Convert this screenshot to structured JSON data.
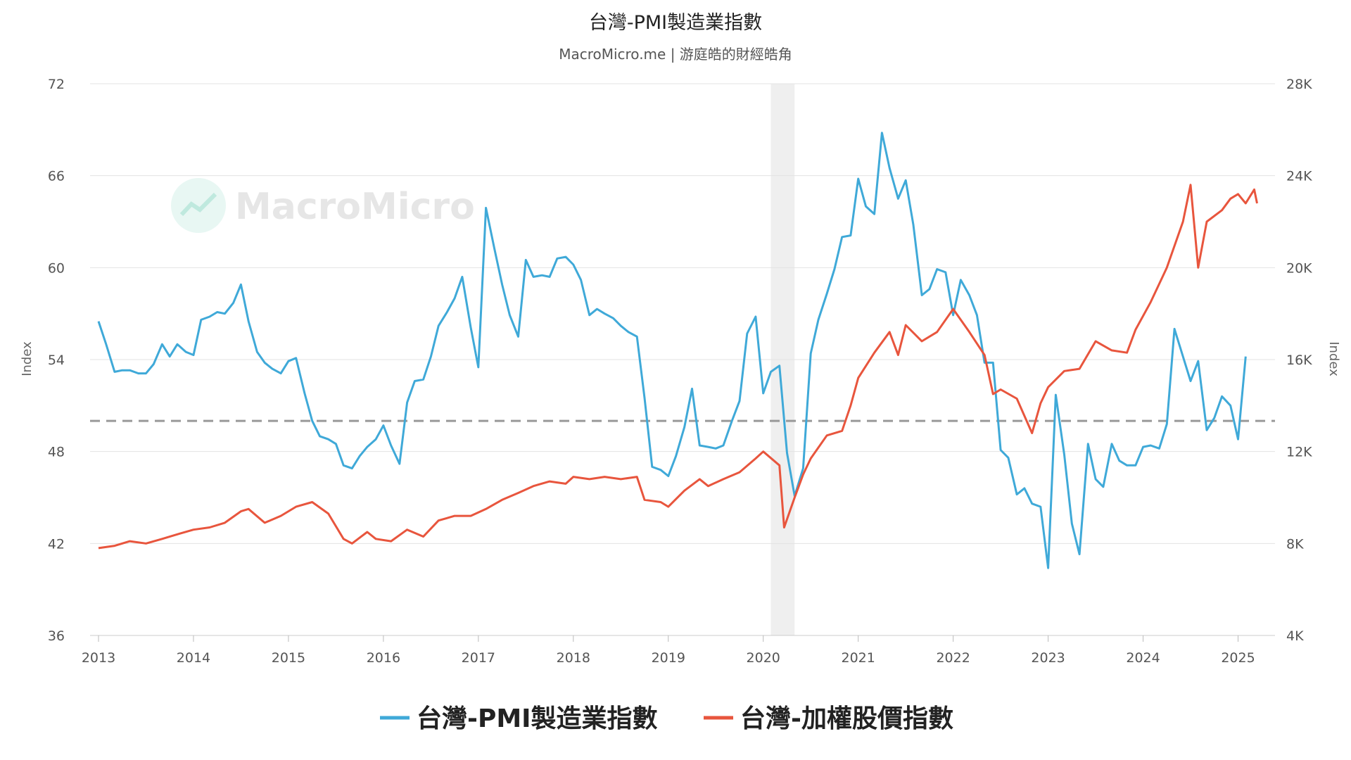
{
  "chart_data": {
    "type": "line",
    "title": "台灣-PMI製造業指數",
    "subtitle": "MacroMicro.me | 游庭皓的財經皓角",
    "watermark": "MacroMicro",
    "left_axis": {
      "label": "Index",
      "min": 36,
      "max": 72,
      "ticks": [
        36,
        42,
        48,
        54,
        60,
        66,
        72
      ]
    },
    "right_axis": {
      "label": "Index",
      "min": 4000,
      "max": 28000,
      "ticks": [
        4000,
        8000,
        12000,
        16000,
        20000,
        24000,
        28000
      ],
      "tick_labels": [
        "4K",
        "8K",
        "12K",
        "16K",
        "20K",
        "24K",
        "28K"
      ]
    },
    "x_axis": {
      "min": 2013.0,
      "max": 2025.3,
      "ticks": [
        2013,
        2014,
        2015,
        2016,
        2017,
        2018,
        2019,
        2020,
        2021,
        2022,
        2023,
        2024,
        2025
      ]
    },
    "reference_line": {
      "axis": "left",
      "value": 50
    },
    "shaded_region": {
      "from": 2020.08,
      "to": 2020.33
    },
    "grid": true,
    "legend_position": "bottom",
    "series": [
      {
        "name": "台灣-PMI製造業指數",
        "axis": "left",
        "color": "#3fa9d8",
        "points": [
          [
            2013.0,
            56.5
          ],
          [
            2013.08,
            55.0
          ],
          [
            2013.17,
            53.2
          ],
          [
            2013.25,
            53.3
          ],
          [
            2013.33,
            53.3
          ],
          [
            2013.42,
            53.1
          ],
          [
            2013.5,
            53.1
          ],
          [
            2013.58,
            53.7
          ],
          [
            2013.67,
            55.0
          ],
          [
            2013.75,
            54.2
          ],
          [
            2013.83,
            55.0
          ],
          [
            2013.92,
            54.5
          ],
          [
            2014.0,
            54.3
          ],
          [
            2014.08,
            56.6
          ],
          [
            2014.17,
            56.8
          ],
          [
            2014.25,
            57.1
          ],
          [
            2014.33,
            57.0
          ],
          [
            2014.42,
            57.7
          ],
          [
            2014.5,
            58.9
          ],
          [
            2014.58,
            56.5
          ],
          [
            2014.67,
            54.5
          ],
          [
            2014.75,
            53.8
          ],
          [
            2014.83,
            53.4
          ],
          [
            2014.92,
            53.1
          ],
          [
            2015.0,
            53.9
          ],
          [
            2015.08,
            54.1
          ],
          [
            2015.17,
            51.8
          ],
          [
            2015.25,
            50.0
          ],
          [
            2015.33,
            49.0
          ],
          [
            2015.42,
            48.8
          ],
          [
            2015.5,
            48.5
          ],
          [
            2015.58,
            47.1
          ],
          [
            2015.67,
            46.9
          ],
          [
            2015.75,
            47.7
          ],
          [
            2015.83,
            48.3
          ],
          [
            2015.92,
            48.8
          ],
          [
            2016.0,
            49.7
          ],
          [
            2016.08,
            48.4
          ],
          [
            2016.17,
            47.2
          ],
          [
            2016.25,
            51.2
          ],
          [
            2016.33,
            52.6
          ],
          [
            2016.42,
            52.7
          ],
          [
            2016.5,
            54.2
          ],
          [
            2016.58,
            56.2
          ],
          [
            2016.67,
            57.1
          ],
          [
            2016.75,
            58.0
          ],
          [
            2016.83,
            59.4
          ],
          [
            2016.92,
            56.1
          ],
          [
            2017.0,
            53.5
          ],
          [
            2017.08,
            63.9
          ],
          [
            2017.17,
            61.2
          ],
          [
            2017.25,
            58.9
          ],
          [
            2017.33,
            56.9
          ],
          [
            2017.42,
            55.5
          ],
          [
            2017.5,
            60.5
          ],
          [
            2017.58,
            59.4
          ],
          [
            2017.67,
            59.5
          ],
          [
            2017.75,
            59.4
          ],
          [
            2017.83,
            60.6
          ],
          [
            2017.92,
            60.7
          ],
          [
            2018.0,
            60.2
          ],
          [
            2018.08,
            59.2
          ],
          [
            2018.17,
            56.9
          ],
          [
            2018.25,
            57.3
          ],
          [
            2018.33,
            57.0
          ],
          [
            2018.42,
            56.7
          ],
          [
            2018.5,
            56.2
          ],
          [
            2018.58,
            55.8
          ],
          [
            2018.67,
            55.5
          ],
          [
            2018.75,
            51.5
          ],
          [
            2018.83,
            47.0
          ],
          [
            2018.92,
            46.8
          ],
          [
            2019.0,
            46.4
          ],
          [
            2019.08,
            47.7
          ],
          [
            2019.17,
            49.6
          ],
          [
            2019.25,
            52.1
          ],
          [
            2019.33,
            48.4
          ],
          [
            2019.42,
            48.3
          ],
          [
            2019.5,
            48.2
          ],
          [
            2019.58,
            48.4
          ],
          [
            2019.67,
            50.0
          ],
          [
            2019.75,
            51.3
          ],
          [
            2019.83,
            55.7
          ],
          [
            2019.92,
            56.8
          ],
          [
            2020.0,
            51.8
          ],
          [
            2020.08,
            53.2
          ],
          [
            2020.17,
            53.6
          ],
          [
            2020.25,
            47.9
          ],
          [
            2020.33,
            45.1
          ],
          [
            2020.42,
            46.9
          ],
          [
            2020.5,
            54.4
          ],
          [
            2020.58,
            56.6
          ],
          [
            2020.67,
            58.3
          ],
          [
            2020.75,
            59.9
          ],
          [
            2020.83,
            62.0
          ],
          [
            2020.92,
            62.1
          ],
          [
            2021.0,
            65.8
          ],
          [
            2021.08,
            64.0
          ],
          [
            2021.17,
            63.5
          ],
          [
            2021.25,
            68.8
          ],
          [
            2021.33,
            66.5
          ],
          [
            2021.42,
            64.5
          ],
          [
            2021.5,
            65.7
          ],
          [
            2021.58,
            62.8
          ],
          [
            2021.67,
            58.2
          ],
          [
            2021.75,
            58.6
          ],
          [
            2021.83,
            59.9
          ],
          [
            2021.92,
            59.7
          ],
          [
            2022.0,
            56.9
          ],
          [
            2022.08,
            59.2
          ],
          [
            2022.17,
            58.2
          ],
          [
            2022.25,
            56.9
          ],
          [
            2022.33,
            53.8
          ],
          [
            2022.42,
            53.8
          ],
          [
            2022.5,
            48.1
          ],
          [
            2022.58,
            47.6
          ],
          [
            2022.67,
            45.2
          ],
          [
            2022.75,
            45.6
          ],
          [
            2022.83,
            44.6
          ],
          [
            2022.92,
            44.4
          ],
          [
            2023.0,
            40.4
          ],
          [
            2023.08,
            51.7
          ],
          [
            2023.17,
            47.8
          ],
          [
            2023.25,
            43.3
          ],
          [
            2023.33,
            41.3
          ],
          [
            2023.42,
            48.5
          ],
          [
            2023.5,
            46.2
          ],
          [
            2023.58,
            45.7
          ],
          [
            2023.67,
            48.5
          ],
          [
            2023.75,
            47.4
          ],
          [
            2023.83,
            47.1
          ],
          [
            2023.92,
            47.1
          ],
          [
            2024.0,
            48.3
          ],
          [
            2024.08,
            48.4
          ],
          [
            2024.17,
            48.2
          ],
          [
            2024.25,
            49.8
          ],
          [
            2024.33,
            56.0
          ],
          [
            2024.42,
            54.2
          ],
          [
            2024.5,
            52.6
          ],
          [
            2024.58,
            53.9
          ],
          [
            2024.67,
            49.4
          ],
          [
            2024.75,
            50.2
          ],
          [
            2024.83,
            51.6
          ],
          [
            2024.92,
            51.0
          ],
          [
            2025.0,
            48.8
          ],
          [
            2025.08,
            54.2
          ]
        ]
      },
      {
        "name": "台灣-加權股價指數",
        "axis": "right",
        "color": "#e8553d",
        "points": [
          [
            2013.0,
            7800
          ],
          [
            2013.17,
            7900
          ],
          [
            2013.33,
            8100
          ],
          [
            2013.5,
            8000
          ],
          [
            2013.67,
            8200
          ],
          [
            2013.83,
            8400
          ],
          [
            2014.0,
            8600
          ],
          [
            2014.17,
            8700
          ],
          [
            2014.33,
            8900
          ],
          [
            2014.5,
            9400
          ],
          [
            2014.58,
            9500
          ],
          [
            2014.75,
            8900
          ],
          [
            2014.92,
            9200
          ],
          [
            2015.08,
            9600
          ],
          [
            2015.25,
            9800
          ],
          [
            2015.42,
            9300
          ],
          [
            2015.58,
            8200
          ],
          [
            2015.67,
            8000
          ],
          [
            2015.83,
            8500
          ],
          [
            2015.92,
            8200
          ],
          [
            2016.08,
            8100
          ],
          [
            2016.25,
            8600
          ],
          [
            2016.42,
            8300
          ],
          [
            2016.58,
            9000
          ],
          [
            2016.75,
            9200
          ],
          [
            2016.92,
            9200
          ],
          [
            2017.08,
            9500
          ],
          [
            2017.25,
            9900
          ],
          [
            2017.42,
            10200
          ],
          [
            2017.58,
            10500
          ],
          [
            2017.75,
            10700
          ],
          [
            2017.92,
            10600
          ],
          [
            2018.0,
            10900
          ],
          [
            2018.17,
            10800
          ],
          [
            2018.33,
            10900
          ],
          [
            2018.5,
            10800
          ],
          [
            2018.67,
            10900
          ],
          [
            2018.75,
            9900
          ],
          [
            2018.92,
            9800
          ],
          [
            2019.0,
            9600
          ],
          [
            2019.17,
            10300
          ],
          [
            2019.33,
            10800
          ],
          [
            2019.42,
            10500
          ],
          [
            2019.58,
            10800
          ],
          [
            2019.75,
            11100
          ],
          [
            2019.92,
            11700
          ],
          [
            2020.0,
            12000
          ],
          [
            2020.17,
            11400
          ],
          [
            2020.22,
            8700
          ],
          [
            2020.33,
            10000
          ],
          [
            2020.42,
            11000
          ],
          [
            2020.5,
            11700
          ],
          [
            2020.67,
            12700
          ],
          [
            2020.83,
            12900
          ],
          [
            2020.92,
            14000
          ],
          [
            2021.0,
            15200
          ],
          [
            2021.17,
            16300
          ],
          [
            2021.33,
            17200
          ],
          [
            2021.42,
            16200
          ],
          [
            2021.5,
            17500
          ],
          [
            2021.67,
            16800
          ],
          [
            2021.83,
            17200
          ],
          [
            2022.0,
            18200
          ],
          [
            2022.17,
            17200
          ],
          [
            2022.33,
            16200
          ],
          [
            2022.42,
            14500
          ],
          [
            2022.5,
            14700
          ],
          [
            2022.67,
            14300
          ],
          [
            2022.83,
            12800
          ],
          [
            2022.92,
            14100
          ],
          [
            2023.0,
            14800
          ],
          [
            2023.17,
            15500
          ],
          [
            2023.33,
            15600
          ],
          [
            2023.5,
            16800
          ],
          [
            2023.67,
            16400
          ],
          [
            2023.83,
            16300
          ],
          [
            2023.92,
            17300
          ],
          [
            2024.08,
            18500
          ],
          [
            2024.25,
            20000
          ],
          [
            2024.42,
            22000
          ],
          [
            2024.5,
            23600
          ],
          [
            2024.58,
            20000
          ],
          [
            2024.67,
            22000
          ],
          [
            2024.83,
            22500
          ],
          [
            2024.92,
            23000
          ],
          [
            2025.0,
            23200
          ],
          [
            2025.08,
            22800
          ],
          [
            2025.17,
            23400
          ],
          [
            2025.2,
            22800
          ]
        ]
      }
    ]
  }
}
